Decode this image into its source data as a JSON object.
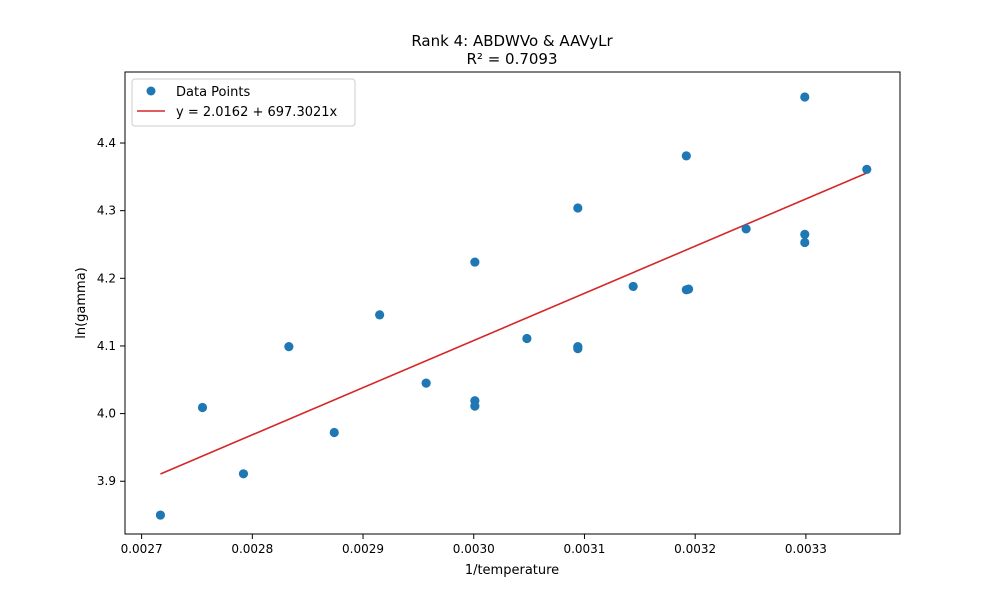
{
  "chart_data": {
    "type": "scatter",
    "title": "Rank 4: ABDWVo & AAVyLr",
    "subtitle": "R² = 0.7093",
    "xlabel": "1/temperature",
    "ylabel": "ln(gamma)",
    "xlim": [
      0.002685,
      0.003385
    ],
    "ylim": [
      3.822,
      4.505
    ],
    "xticks": [
      0.0027,
      0.0028,
      0.0029,
      0.003,
      0.0031,
      0.0032,
      0.0033
    ],
    "xtick_labels": [
      "0.0027",
      "0.0028",
      "0.0029",
      "0.0030",
      "0.0031",
      "0.0032",
      "0.0033"
    ],
    "yticks": [
      3.9,
      4.0,
      4.1,
      4.2,
      4.3,
      4.4
    ],
    "ytick_labels": [
      "3.9",
      "4.0",
      "4.1",
      "4.2",
      "4.3",
      "4.4"
    ],
    "grid": false,
    "legend_position": "top-left",
    "series": [
      {
        "name": "Data Points",
        "kind": "scatter",
        "color": "#1f77b4",
        "points": [
          [
            0.002717,
            3.85
          ],
          [
            0.002755,
            4.009
          ],
          [
            0.002792,
            3.911
          ],
          [
            0.002833,
            4.099
          ],
          [
            0.002874,
            3.972
          ],
          [
            0.002915,
            4.146
          ],
          [
            0.002957,
            4.045
          ],
          [
            0.003001,
            4.224
          ],
          [
            0.003001,
            4.019
          ],
          [
            0.003001,
            4.011
          ],
          [
            0.003048,
            4.111
          ],
          [
            0.003094,
            4.304
          ],
          [
            0.003094,
            4.099
          ],
          [
            0.003094,
            4.096
          ],
          [
            0.003144,
            4.188
          ],
          [
            0.003192,
            4.381
          ],
          [
            0.003192,
            4.183
          ],
          [
            0.003194,
            4.184
          ],
          [
            0.003246,
            4.273
          ],
          [
            0.003299,
            4.468
          ],
          [
            0.003299,
            4.265
          ],
          [
            0.003299,
            4.253
          ],
          [
            0.003355,
            4.361
          ]
        ]
      },
      {
        "name": "y = 2.0162 + 697.3021x",
        "kind": "line",
        "color": "#d62728",
        "intercept": 2.0162,
        "slope": 697.3021,
        "x_range": [
          0.002717,
          0.003355
        ]
      }
    ]
  }
}
